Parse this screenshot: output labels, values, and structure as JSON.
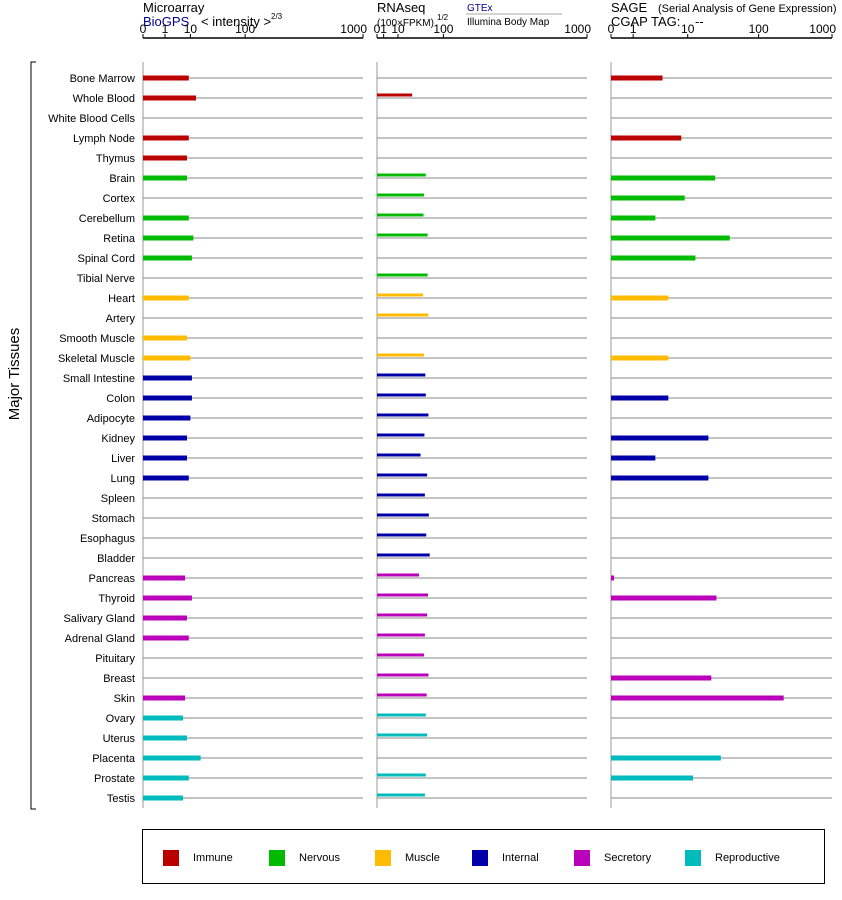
{
  "chart_data": {
    "type": "bar",
    "ylabel": "Major Tissues",
    "categories": [
      "Bone Marrow",
      "Whole Blood",
      "White Blood Cells",
      "Lymph Node",
      "Thymus",
      "Brain",
      "Cortex",
      "Cerebellum",
      "Retina",
      "Spinal Cord",
      "Tibial Nerve",
      "Heart",
      "Artery",
      "Smooth Muscle",
      "Skeletal Muscle",
      "Small Intestine",
      "Colon",
      "Adipocyte",
      "Kidney",
      "Liver",
      "Lung",
      "Spleen",
      "Stomach",
      "Esophagus",
      "Bladder",
      "Pancreas",
      "Thyroid",
      "Salivary Gland",
      "Adrenal Gland",
      "Pituitary",
      "Breast",
      "Skin",
      "Ovary",
      "Uterus",
      "Placenta",
      "Prostate",
      "Testis"
    ],
    "groups": [
      "Immune",
      "Immune",
      "Immune",
      "Immune",
      "Immune",
      "Nervous",
      "Nervous",
      "Nervous",
      "Nervous",
      "Nervous",
      "Nervous",
      "Muscle",
      "Muscle",
      "Muscle",
      "Muscle",
      "Internal",
      "Internal",
      "Internal",
      "Internal",
      "Internal",
      "Internal",
      "Internal",
      "Internal",
      "Internal",
      "Internal",
      "Secretory",
      "Secretory",
      "Secretory",
      "Secretory",
      "Secretory",
      "Secretory",
      "Secretory",
      "Reproductive",
      "Reproductive",
      "Reproductive",
      "Reproductive",
      "Reproductive"
    ],
    "ticks": [
      "0",
      "1",
      "10",
      "100",
      "1000"
    ],
    "xlim": [
      0,
      1000
    ],
    "panels": [
      {
        "title": "Microarray",
        "subtitle_left": "BioGPS",
        "subtitle_right": "< intensity >",
        "subtitle_exp": "2/3",
        "scale": "power 1/3",
        "values": [
          9,
          14,
          null,
          9,
          8,
          8,
          null,
          9,
          12,
          11,
          null,
          9,
          null,
          8,
          10,
          11,
          11,
          10,
          8,
          8,
          9,
          null,
          null,
          null,
          null,
          7,
          11,
          8,
          9,
          null,
          null,
          7,
          6,
          8,
          18,
          9,
          6
        ]
      },
      {
        "title": "RNAseq",
        "subtitle_left": "(100×FPKM)",
        "subtitle_exp": "1/2",
        "source_top": "GTEx",
        "source_bottom": "Illumina Body Map",
        "scale": "power 1/2",
        "values": [
          null,
          28,
          null,
          null,
          null,
          54,
          50,
          49,
          58,
          null,
          58,
          48,
          60,
          null,
          50,
          53,
          54,
          60,
          51,
          43,
          57,
          52,
          61,
          55,
          63,
          40,
          59,
          57,
          52,
          50,
          60,
          56,
          54,
          57,
          null,
          54,
          52
        ]
      },
      {
        "title": "SAGE",
        "subtitle_title": "(Serial Analysis of Gene Expression)",
        "tag_label": "CGAP TAG:",
        "tag_value": "--",
        "scale": "log",
        "values": [
          4,
          null,
          null,
          8,
          null,
          25,
          9,
          3,
          40,
          13,
          null,
          5,
          null,
          null,
          5,
          null,
          5,
          null,
          20,
          3,
          20,
          null,
          null,
          null,
          null,
          0.1,
          26,
          null,
          null,
          null,
          22,
          220,
          null,
          null,
          30,
          12,
          null
        ]
      }
    ],
    "legend": [
      {
        "label": "Immune",
        "color": "#bb0000"
      },
      {
        "label": "Nervous",
        "color": "#00bb00"
      },
      {
        "label": "Muscle",
        "color": "#ffbb00"
      },
      {
        "label": "Internal",
        "color": "#0000aa"
      },
      {
        "label": "Secretory",
        "color": "#bb00bb"
      },
      {
        "label": "Reproductive",
        "color": "#00bbbb"
      }
    ]
  }
}
